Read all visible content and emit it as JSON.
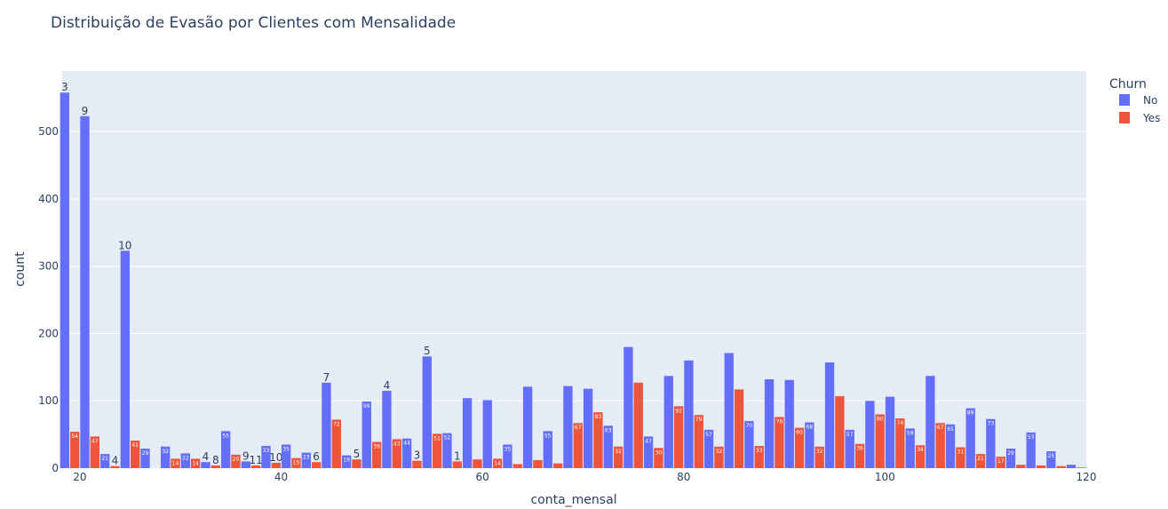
{
  "chart_data": {
    "type": "bar",
    "barmode": "group",
    "title": "Distribuição de Evasão por Clientes com Mensalidade",
    "xlabel": "conta_mensal",
    "ylabel": "count",
    "xlim": [
      18.25,
      120
    ],
    "ylim": [
      0,
      590
    ],
    "xticks": [
      20,
      40,
      60,
      80,
      100,
      120
    ],
    "yticks": [
      0,
      100,
      200,
      300,
      400,
      500
    ],
    "grid": true,
    "legend": {
      "title": "Churn",
      "position": "top-right"
    },
    "bin_start": 18,
    "bin_width": 2,
    "series": [
      {
        "name": "No",
        "color": "#636efa",
        "values": [
          558,
          523,
          21,
          323,
          29,
          32,
          22,
          9,
          55,
          10,
          33,
          35,
          23,
          127,
          19,
          99,
          115,
          44,
          166,
          52,
          104,
          101,
          35,
          121,
          55,
          122,
          118,
          63,
          180,
          47,
          137,
          160,
          57,
          171,
          70,
          132,
          131,
          68,
          157,
          57,
          100,
          106,
          59,
          137,
          65,
          89,
          73,
          29,
          53,
          25,
          5
        ]
      },
      {
        "name": "Yes",
        "color": "#ef553b",
        "values": [
          54,
          47,
          3,
          41,
          0,
          14,
          14,
          4,
          20,
          4,
          8,
          15,
          9,
          72,
          13,
          39,
          43,
          11,
          51,
          10,
          13,
          14,
          6,
          12,
          7,
          67,
          83,
          32,
          127,
          30,
          92,
          79,
          32,
          117,
          33,
          76,
          60,
          32,
          107,
          36,
          80,
          74,
          34,
          67,
          31,
          21,
          17,
          5,
          4,
          3,
          1
        ]
      }
    ],
    "outside_labels": [
      "3",
      "9",
      "4",
      "10",
      "4",
      "8",
      "9",
      "11",
      "10",
      "6",
      "7",
      "5",
      "4",
      "3",
      "5",
      "1"
    ]
  }
}
